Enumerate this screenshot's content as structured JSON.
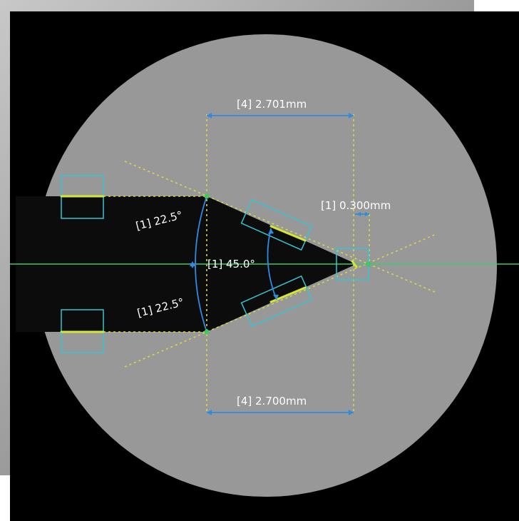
{
  "colors": {
    "frame_gray": "#8f8f8f",
    "background": "#000000",
    "disc": "#989898",
    "part": "#0c0c0c",
    "guide_yellow": "#d8d64a",
    "edge_yellow": "#d6e635",
    "measure_blue": "#2f8be0",
    "cyan_box": "#37c3cf",
    "axis_green": "#3ec86a"
  },
  "annotations": {
    "top_dimension": "[4] 2.701mm",
    "bottom_dimension": "[4] 2.700mm",
    "tip_dimension": "[1] 0.300mm",
    "upper_angle": "[1] 22.5°",
    "lower_angle": "[1] 22.5°",
    "center_angle": "[1] 45.0°"
  }
}
